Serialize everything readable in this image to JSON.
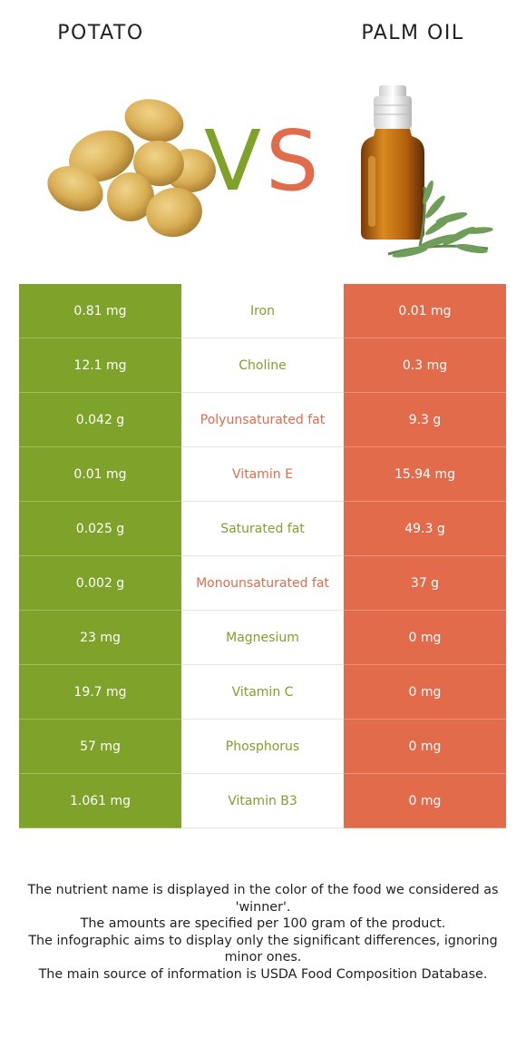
{
  "header": {
    "left_food": "POTATO",
    "right_food": "PALM OIL",
    "vs_v": "V",
    "vs_s": "S"
  },
  "colors": {
    "left_green": "#7ea22a",
    "right_red": "#e16b4b"
  },
  "rows": [
    {
      "left": "0.81 mg",
      "nutrient": "Iron",
      "right": "0.01 mg",
      "winner": "left"
    },
    {
      "left": "12.1 mg",
      "nutrient": "Choline",
      "right": "0.3 mg",
      "winner": "left"
    },
    {
      "left": "0.042 g",
      "nutrient": "Polyunsaturated fat",
      "right": "9.3 g",
      "winner": "right"
    },
    {
      "left": "0.01 mg",
      "nutrient": "Vitamin E",
      "right": "15.94 mg",
      "winner": "right"
    },
    {
      "left": "0.025 g",
      "nutrient": "Saturated fat",
      "right": "49.3 g",
      "winner": "left"
    },
    {
      "left": "0.002 g",
      "nutrient": "Monounsaturated fat",
      "right": "37 g",
      "winner": "right"
    },
    {
      "left": "23 mg",
      "nutrient": "Magnesium",
      "right": "0 mg",
      "winner": "left"
    },
    {
      "left": "19.7 mg",
      "nutrient": "Vitamin C",
      "right": "0 mg",
      "winner": "left"
    },
    {
      "left": "57 mg",
      "nutrient": "Phosphorus",
      "right": "0 mg",
      "winner": "left"
    },
    {
      "left": "1.061 mg",
      "nutrient": "Vitamin B3",
      "right": "0 mg",
      "winner": "left"
    }
  ],
  "footer": {
    "line1": "The nutrient name is displayed in the color of the food we considered as 'winner'.",
    "line2": "The amounts are specified per 100 gram of the product.",
    "line3": "The infographic aims to display only the significant differences, ignoring minor ones.",
    "line4": "The main source of information is USDA Food Composition Database."
  }
}
